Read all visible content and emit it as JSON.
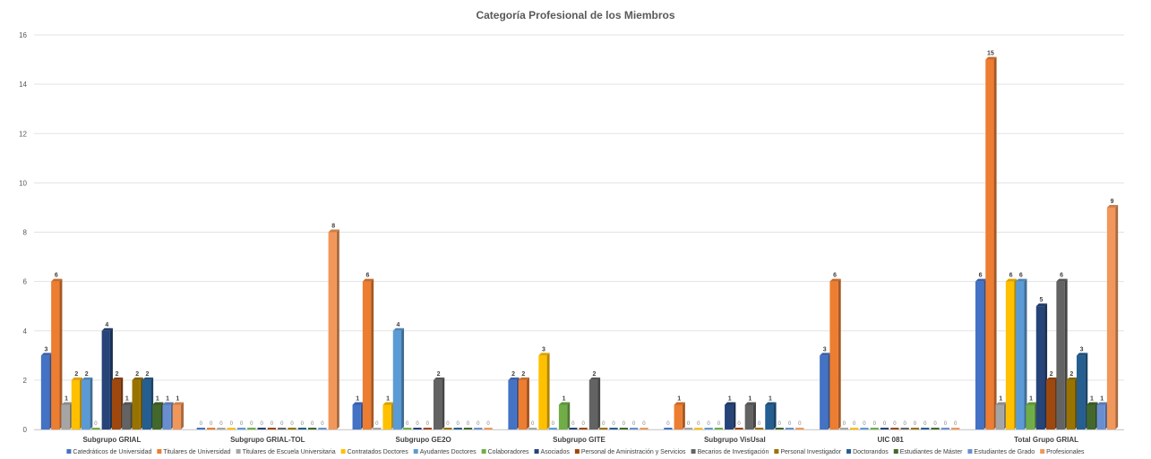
{
  "chart_data": {
    "type": "bar",
    "title": "Categoría Profesional de los Miembros",
    "ylim": [
      0,
      16
    ],
    "yticks": [
      0,
      2,
      4,
      6,
      8,
      10,
      12,
      14,
      16
    ],
    "grid": true,
    "legend_position": "bottom",
    "categories": [
      "Subgrupo GRIAL",
      "Subgrupo GRIAL-TOL",
      "Subgrupo GE2O",
      "Subgrupo GITE",
      "Subgrupo VisUsal",
      "UIC 081",
      "Total Grupo GRIAL"
    ],
    "series": [
      {
        "name": "Catedráticos de Universidad",
        "color": "#4472C4",
        "values": [
          3,
          0,
          1,
          2,
          0,
          3,
          6
        ]
      },
      {
        "name": "Titulares de Universidad",
        "color": "#ED7D31",
        "values": [
          6,
          0,
          6,
          2,
          1,
          6,
          15
        ]
      },
      {
        "name": "Titulares de Escuela Universitaria",
        "color": "#A5A5A5",
        "values": [
          1,
          0,
          0,
          0,
          0,
          0,
          1
        ]
      },
      {
        "name": "Contratados Doctores",
        "color": "#FFC000",
        "values": [
          2,
          0,
          1,
          3,
          0,
          0,
          6
        ]
      },
      {
        "name": "Ayudantes Doctores",
        "color": "#5B9BD5",
        "values": [
          2,
          0,
          4,
          0,
          0,
          0,
          6
        ]
      },
      {
        "name": "Colaboradores",
        "color": "#70AD47",
        "values": [
          0,
          0,
          0,
          1,
          0,
          0,
          1
        ]
      },
      {
        "name": "Asociados",
        "color": "#264478",
        "values": [
          4,
          0,
          0,
          0,
          1,
          0,
          5
        ]
      },
      {
        "name": "Personal de Aministración y Servicios",
        "color": "#9E480E",
        "values": [
          2,
          0,
          0,
          0,
          0,
          0,
          2
        ]
      },
      {
        "name": "Becarios de Investigación",
        "color": "#636363",
        "values": [
          1,
          0,
          2,
          2,
          1,
          0,
          6
        ]
      },
      {
        "name": "Personal Investigador",
        "color": "#997300",
        "values": [
          2,
          0,
          0,
          0,
          0,
          0,
          2
        ]
      },
      {
        "name": "Doctorandos",
        "color": "#255E91",
        "values": [
          2,
          0,
          0,
          0,
          1,
          0,
          3
        ]
      },
      {
        "name": "Estudiantes de Máster",
        "color": "#43682B",
        "values": [
          1,
          0,
          0,
          0,
          0,
          0,
          1
        ]
      },
      {
        "name": "Estudiantes de Grado",
        "color": "#698ED0",
        "values": [
          1,
          0,
          0,
          0,
          0,
          0,
          1
        ]
      },
      {
        "name": "Profesionales",
        "color": "#F1975A",
        "values": [
          1,
          8,
          0,
          0,
          0,
          0,
          9
        ]
      }
    ]
  }
}
